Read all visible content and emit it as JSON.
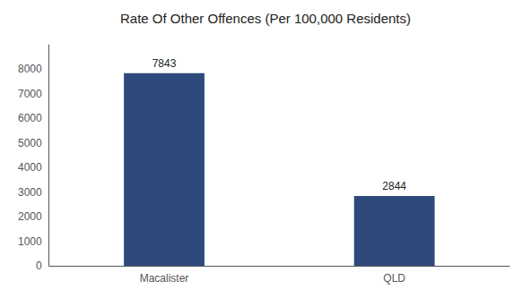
{
  "chart_data": {
    "type": "bar",
    "title": "Rate Of Other Offences (Per 100,000 Residents)",
    "categories": [
      "Macalister",
      "QLD"
    ],
    "values": [
      7843,
      2844
    ],
    "color": "#2e4a7a",
    "ylim": [
      0,
      9000
    ],
    "yticks": [
      0,
      1000,
      2000,
      3000,
      4000,
      5000,
      6000,
      7000,
      8000
    ],
    "grid": false,
    "data_labels": true
  }
}
